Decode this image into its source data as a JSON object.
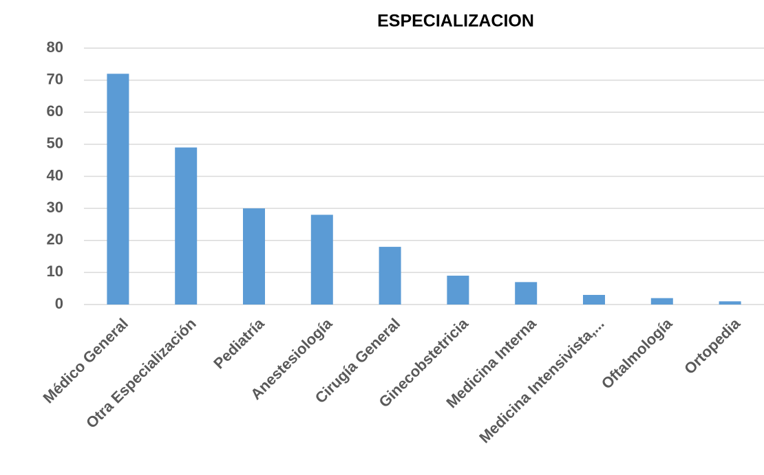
{
  "chart_data": {
    "type": "bar",
    "title": "ESPECIALIZACION",
    "categories": [
      "Médico General",
      "Otra Especialización",
      "Pediatría",
      "Anestesiología",
      "Cirugía General",
      "Ginecobstetricia",
      "Medicina Interna",
      "Medicina Intensivista,...",
      "Oftalmología",
      "Ortopedia"
    ],
    "values": [
      72,
      49,
      30,
      28,
      18,
      9,
      7,
      3,
      2,
      1
    ],
    "color": "#5b9bd5",
    "ylim": [
      0,
      80
    ],
    "yticks": [
      0,
      10,
      20,
      30,
      40,
      50,
      60,
      70,
      80
    ],
    "grid": true
  }
}
